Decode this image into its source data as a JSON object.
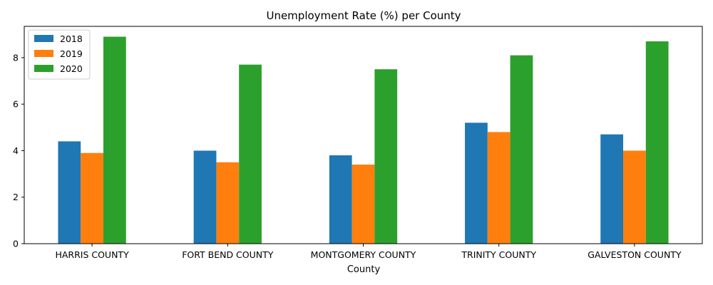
{
  "chart_data": {
    "type": "bar",
    "title": "Unemployment Rate (%) per County",
    "xlabel": "County",
    "ylabel": "",
    "categories": [
      "HARRIS COUNTY",
      "FORT BEND COUNTY",
      "MONTGOMERY COUNTY",
      "TRINITY COUNTY",
      "GALVESTON COUNTY"
    ],
    "series": [
      {
        "name": "2018",
        "color": "#1f77b4",
        "values": [
          4.4,
          4.0,
          3.8,
          5.2,
          4.7
        ]
      },
      {
        "name": "2019",
        "color": "#ff7f0e",
        "values": [
          3.9,
          3.5,
          3.4,
          4.8,
          4.0
        ]
      },
      {
        "name": "2020",
        "color": "#2ca02c",
        "values": [
          8.9,
          7.7,
          7.5,
          8.1,
          8.7
        ]
      }
    ],
    "yticks": [
      0,
      2,
      4,
      6,
      8
    ],
    "ylim": [
      0,
      9.345
    ],
    "grid": false,
    "legend_position": "top-left"
  }
}
